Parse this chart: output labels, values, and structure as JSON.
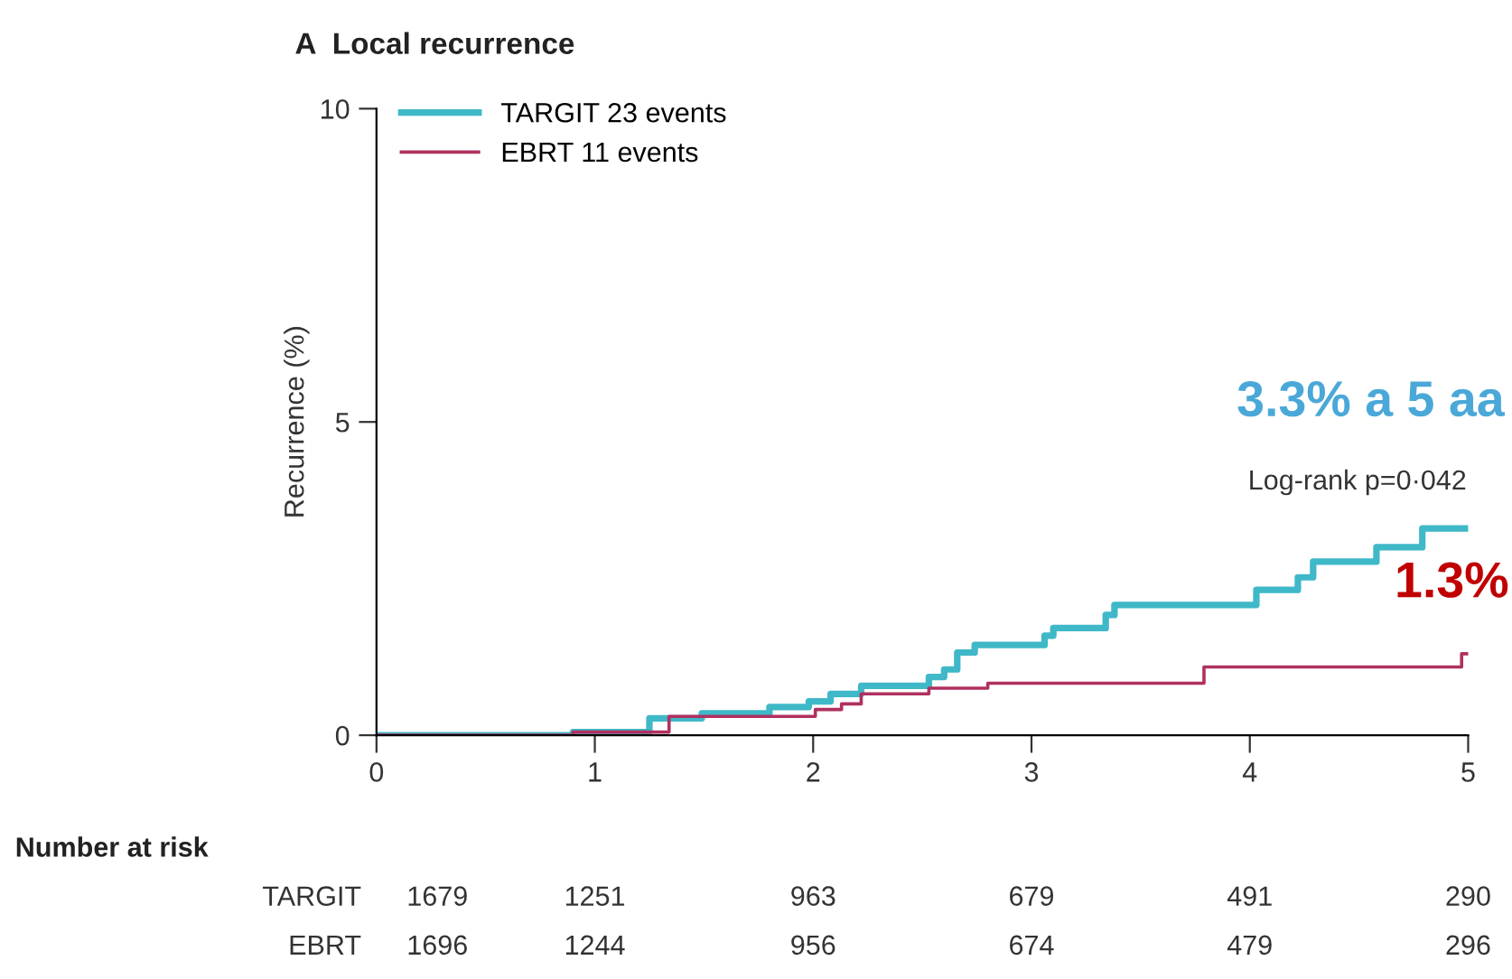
{
  "chart_data": {
    "type": "step",
    "title": "A  Local recurrence",
    "ylabel": "Recurrence (%)",
    "xlim": [
      0,
      5
    ],
    "xticks": [
      0,
      1,
      2,
      3,
      4,
      5
    ],
    "ylim": [
      0,
      10
    ],
    "yticks": [
      0,
      5,
      10
    ],
    "grid": false,
    "legend": "top left",
    "line_style": "solid",
    "marker": "none",
    "series": [
      {
        "name": "TARGIT 23 events",
        "color": "#3fb8c8",
        "x": [
          0,
          0.9,
          1.25,
          1.49,
          1.8,
          1.98,
          2.08,
          2.22,
          2.53,
          2.6,
          2.66,
          2.74,
          3.06,
          3.1,
          3.34,
          3.38,
          4.03,
          4.22,
          4.29,
          4.58,
          4.79,
          5
        ],
        "values": [
          0,
          0.05,
          0.27,
          0.35,
          0.45,
          0.54,
          0.66,
          0.79,
          0.93,
          1.05,
          1.32,
          1.44,
          1.59,
          1.71,
          1.92,
          2.08,
          2.32,
          2.52,
          2.77,
          3.0,
          3.3,
          3.3
        ]
      },
      {
        "name": "EBRT 11 events",
        "color": "#b03060",
        "x": [
          0,
          0.9,
          1.34,
          2.01,
          2.13,
          2.22,
          2.53,
          2.8,
          3.79,
          4.97,
          5
        ],
        "values": [
          0,
          0.05,
          0.3,
          0.41,
          0.5,
          0.66,
          0.75,
          0.83,
          1.09,
          1.3,
          1.3
        ]
      }
    ],
    "annotations": [
      "Log-rank p=0·042",
      "3.3% a 5 aa",
      "1.3%",
      "Number at risk",
      "TARGIT 1679 1251 963 679 491 290",
      "EBRT 1696 1244 956 674 479 296"
    ]
  }
}
